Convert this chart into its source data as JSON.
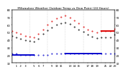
{
  "title": "Milwaukee Weather Outdoor Temp vs Dew Point (24 Hours)",
  "title_fontsize": 3.2,
  "background_color": "#ffffff",
  "grid_color": "#aaaaaa",
  "xlim": [
    0,
    23
  ],
  "ylim": [
    10,
    80
  ],
  "yticks_left": [
    10,
    20,
    30,
    40,
    50,
    60,
    70,
    80
  ],
  "yticks_right": [
    10,
    20,
    30,
    40,
    50,
    60,
    70,
    80
  ],
  "xticks": [
    1,
    2,
    3,
    5,
    6,
    7,
    9,
    10,
    11,
    13,
    14,
    15,
    17,
    18,
    19,
    21,
    22,
    23
  ],
  "vlines": [
    4,
    8,
    12,
    16,
    20
  ],
  "temp_x": [
    0,
    1,
    2,
    3,
    4,
    5,
    6,
    7,
    8,
    9,
    10,
    11,
    12,
    13,
    14,
    15,
    16,
    17,
    18,
    19,
    20,
    21,
    22,
    23
  ],
  "temp_y": [
    52,
    50,
    48,
    46,
    45,
    44,
    48,
    54,
    60,
    65,
    69,
    71,
    72,
    70,
    66,
    62,
    58,
    54,
    52,
    50,
    52,
    52,
    52,
    55
  ],
  "dew_x": [
    0,
    1,
    2,
    3,
    4,
    5,
    6,
    7,
    8,
    9,
    10,
    11,
    12,
    13,
    14,
    15,
    16,
    17,
    18,
    19,
    20,
    21,
    22,
    23
  ],
  "dew_y": [
    22,
    22,
    21,
    21,
    21,
    21,
    21,
    21,
    21,
    22,
    22,
    22,
    22,
    22,
    22,
    22,
    22,
    22,
    22,
    22,
    22,
    22,
    22,
    22
  ],
  "black_x": [
    0,
    1,
    2,
    3,
    4,
    5,
    6,
    7,
    8,
    9,
    10,
    11,
    12,
    13,
    14,
    15,
    16,
    17,
    18,
    19,
    20,
    21,
    22,
    23
  ],
  "black_y": [
    46,
    44,
    42,
    40,
    39,
    38,
    42,
    48,
    53,
    57,
    60,
    62,
    63,
    61,
    58,
    54,
    51,
    47,
    45,
    43,
    44,
    44,
    44,
    47
  ],
  "temp_color": "#dd0000",
  "dew_color": "#0000cc",
  "black_color": "#000000",
  "blue_line_x": [
    0,
    5
  ],
  "blue_line_y": [
    21,
    21
  ],
  "blue_line2_x": [
    12,
    20
  ],
  "blue_line2_y": [
    22,
    22
  ],
  "red_line_x": [
    20,
    23
  ],
  "red_line_y": [
    52,
    52
  ],
  "tick_fontsize": 2.8,
  "marker_size": 0.9,
  "line_width": 1.4
}
